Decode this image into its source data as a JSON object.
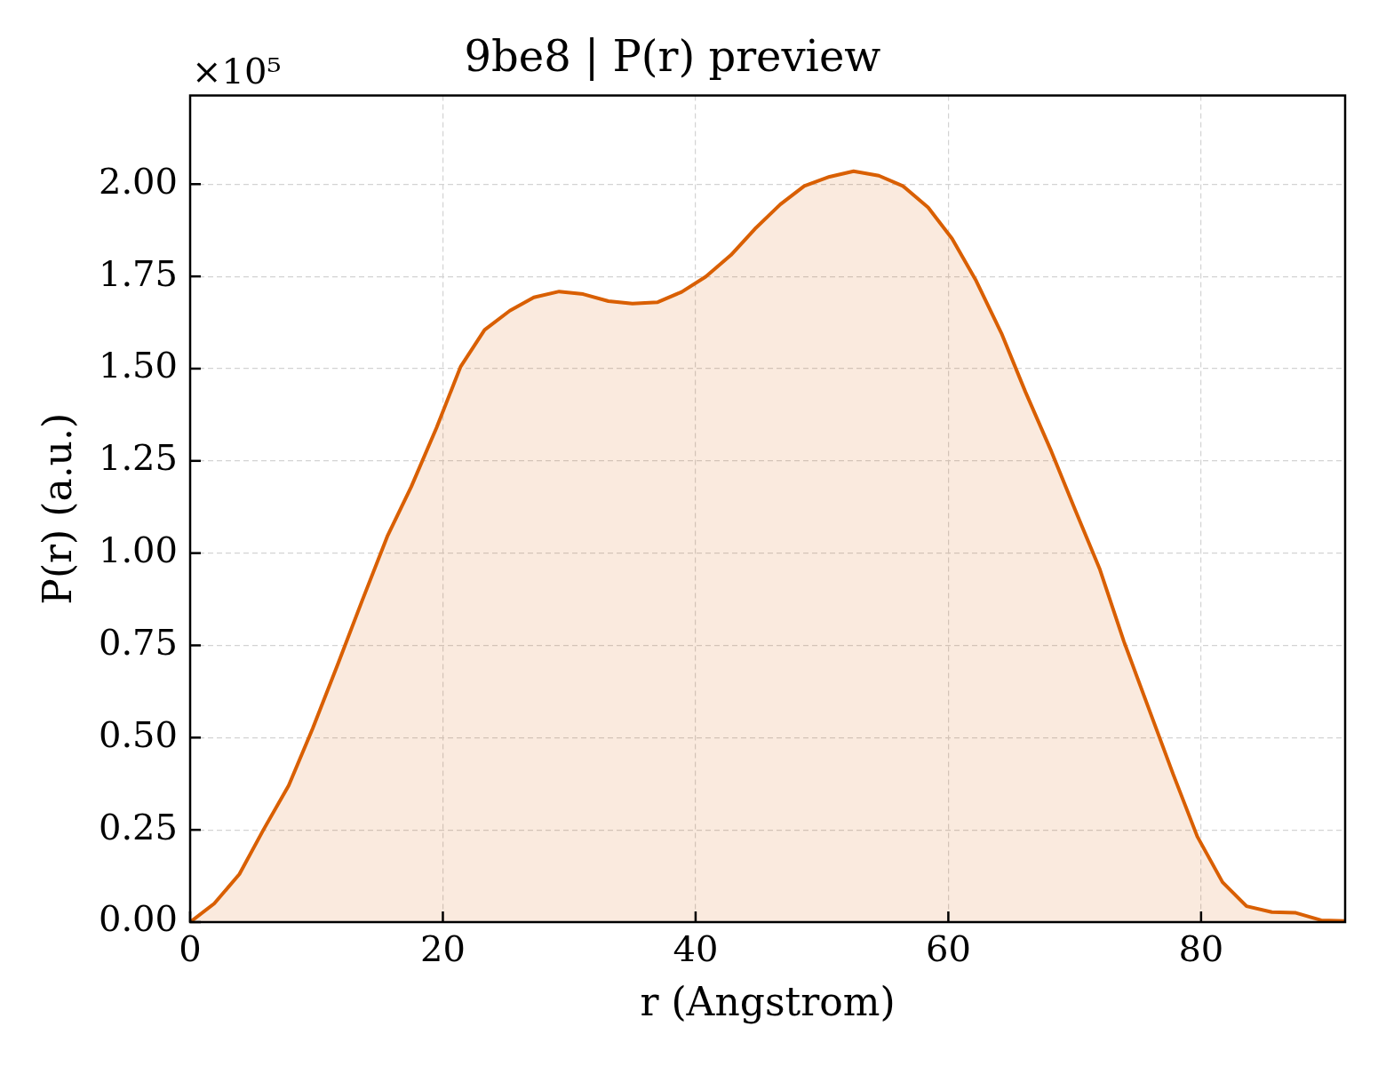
{
  "chart_data": {
    "type": "area",
    "title": "9be8 | P(r) preview",
    "xlabel": "r (Angstrom)",
    "ylabel": "P(r) (a.u.)",
    "annotations": [
      "×10⁵"
    ],
    "color": "#d95f02",
    "x": [
      0,
      1.9,
      3.9,
      5.8,
      7.8,
      9.7,
      11.7,
      13.6,
      15.6,
      17.5,
      19.5,
      21.4,
      23.3,
      25.3,
      27.2,
      29.2,
      31.1,
      33.1,
      35.0,
      37.0,
      38.9,
      40.8,
      42.8,
      44.7,
      46.7,
      48.6,
      50.6,
      52.5,
      54.5,
      56.4,
      58.4,
      60.3,
      62.2,
      64.2,
      66.1,
      68.1,
      70.0,
      72.0,
      73.9,
      75.9,
      77.8,
      79.7,
      81.7,
      83.6,
      85.6,
      87.5,
      89.5,
      91.4
    ],
    "values": [
      0,
      0.05,
      0.13,
      0.25,
      0.37,
      0.525,
      0.7,
      0.87,
      1.045,
      1.18,
      1.34,
      1.505,
      1.605,
      1.657,
      1.693,
      1.709,
      1.702,
      1.683,
      1.676,
      1.68,
      1.708,
      1.749,
      1.808,
      1.879,
      1.945,
      1.995,
      2.02,
      2.035,
      2.023,
      1.995,
      1.937,
      1.852,
      1.738,
      1.596,
      1.437,
      1.28,
      1.12,
      0.955,
      0.76,
      0.575,
      0.4,
      0.232,
      0.108,
      0.043,
      0.027,
      0.025,
      0.005,
      0.003
    ],
    "xlim": [
      0,
      91.4
    ],
    "ylim": [
      0,
      2.24
    ],
    "xticks": [
      0,
      20,
      40,
      60,
      80
    ],
    "yticks": [
      {
        "value": 0,
        "label": "0.00"
      },
      {
        "value": 0.25,
        "label": "0.25"
      },
      {
        "value": 0.5,
        "label": "0.50"
      },
      {
        "value": 0.75,
        "label": "0.75"
      },
      {
        "value": 1,
        "label": "1.00"
      },
      {
        "value": 1.25,
        "label": "1.25"
      },
      {
        "value": 1.5,
        "label": "1.50"
      },
      {
        "value": 1.75,
        "label": "1.75"
      },
      {
        "value": 2,
        "label": "2.00"
      }
    ],
    "grid": true
  }
}
